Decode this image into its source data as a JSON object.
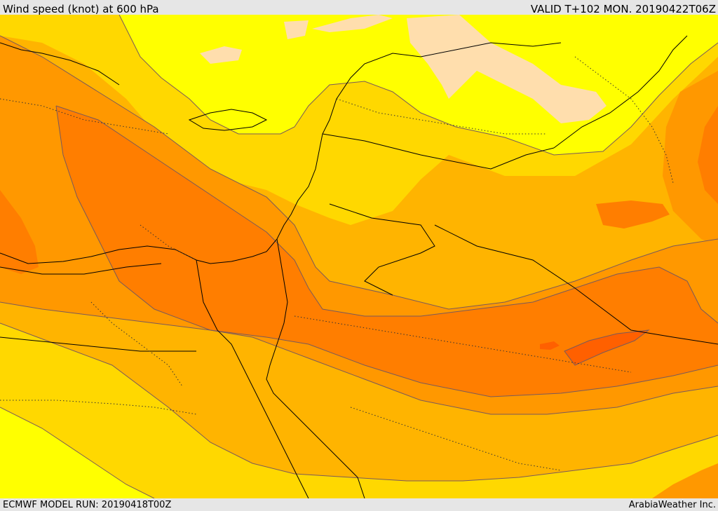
{
  "header": {
    "title": "Wind speed (knot) at 600 hPa",
    "valid": "VALID T+102 MON. 20190422T06Z"
  },
  "footer": {
    "model_run": "ECMWF MODEL RUN: 20190418T00Z",
    "credit": "ArabiaWeather Inc."
  },
  "palette": {
    "band_0": "#ffdead",
    "band_1": "#ffff00",
    "band_2": "#ffd800",
    "band_3": "#ffb400",
    "band_4": "#ff9800",
    "band_5": "#ff7e00",
    "band_6": "#ff6000",
    "contour_line": "#7a5a5a",
    "coastline": "#000000",
    "border_dotted": "#333333"
  }
}
